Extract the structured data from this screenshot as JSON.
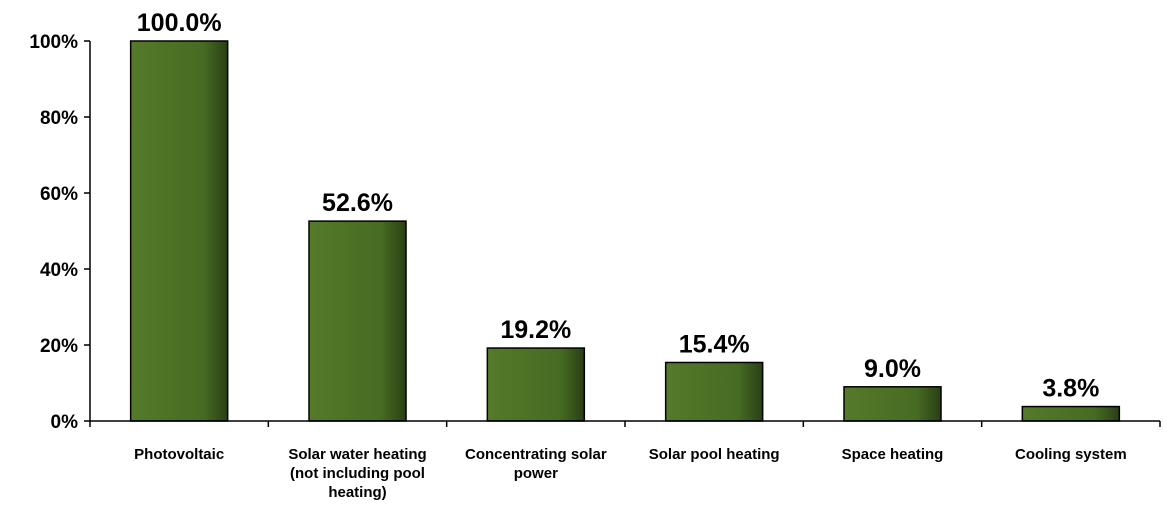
{
  "chart_data": {
    "type": "bar",
    "title": "",
    "xlabel": "",
    "ylabel": "",
    "categories": [
      [
        "Photovoltaic"
      ],
      [
        "Solar water heating",
        "(not including pool",
        "heating)"
      ],
      [
        "Concentrating solar",
        "power"
      ],
      [
        "Solar pool heating"
      ],
      [
        "Space heating"
      ],
      [
        "Cooling system"
      ]
    ],
    "values": [
      100.0,
      52.6,
      19.2,
      15.4,
      9.0,
      3.8
    ],
    "data_labels": [
      "100.0%",
      "52.6%",
      "19.2%",
      "15.4%",
      "9.0%",
      "3.8%"
    ],
    "ylim": [
      0,
      100
    ],
    "y_ticks": [
      0,
      20,
      40,
      60,
      80,
      100
    ],
    "y_tick_labels": [
      "0%",
      "20%",
      "40%",
      "60%",
      "80%",
      "100%"
    ],
    "grid": false,
    "legend": "none",
    "bar_color": "#4a6d23"
  }
}
